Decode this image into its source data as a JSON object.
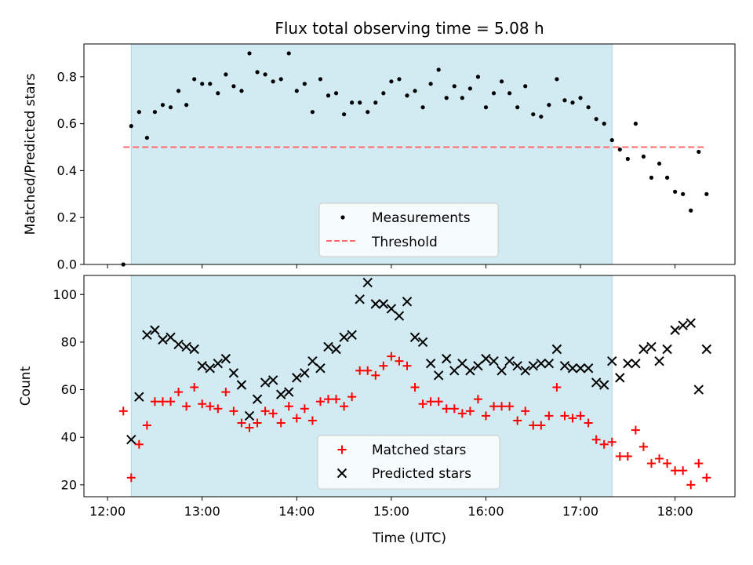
{
  "figure": {
    "title": "Flux total observing time = 5.08 h",
    "xlabel": "Time (UTC)"
  },
  "colors": {
    "shade": "#add8e6",
    "measurements": "#000000",
    "threshold": "#ff6b6b",
    "matched": "#ff0000",
    "predicted": "#000000"
  },
  "chart_data": [
    {
      "type": "scatter",
      "ylabel": "Matched/Predicted stars",
      "ylim": [
        0,
        0.94
      ],
      "yticks": [
        0.0,
        0.2,
        0.4,
        0.6,
        0.8
      ],
      "ytick_labels": [
        "0.0",
        "0.2",
        "0.4",
        "0.6",
        "0.8"
      ],
      "shaded_span": [
        "12:15",
        "17:20"
      ],
      "threshold": {
        "value": 0.5,
        "x_start": "12:10",
        "x_end": "18:20"
      },
      "legend": {
        "placement": "lower center",
        "entries": [
          "Measurements",
          "Threshold"
        ]
      },
      "series": [
        {
          "name": "Measurements",
          "marker": "dot",
          "x": [
            "12:10",
            "12:15",
            "12:20",
            "12:25",
            "12:30",
            "12:35",
            "12:40",
            "12:45",
            "12:50",
            "12:55",
            "13:00",
            "13:05",
            "13:10",
            "13:15",
            "13:20",
            "13:25",
            "13:30",
            "13:35",
            "13:40",
            "13:45",
            "13:50",
            "13:55",
            "14:00",
            "14:05",
            "14:10",
            "14:15",
            "14:20",
            "14:25",
            "14:30",
            "14:35",
            "14:40",
            "14:45",
            "14:50",
            "14:55",
            "15:00",
            "15:05",
            "15:10",
            "15:15",
            "15:20",
            "15:25",
            "15:30",
            "15:35",
            "15:40",
            "15:45",
            "15:50",
            "15:55",
            "16:00",
            "16:05",
            "16:10",
            "16:15",
            "16:20",
            "16:25",
            "16:30",
            "16:35",
            "16:40",
            "16:45",
            "16:50",
            "16:55",
            "17:00",
            "17:05",
            "17:10",
            "17:15",
            "17:20",
            "17:25",
            "17:30",
            "17:35",
            "17:40",
            "17:45",
            "17:50",
            "17:55",
            "18:00",
            "18:05",
            "18:10",
            "18:15",
            "18:20"
          ],
          "y": [
            0.0,
            0.59,
            0.65,
            0.54,
            0.65,
            0.68,
            0.67,
            0.74,
            0.68,
            0.79,
            0.77,
            0.77,
            0.73,
            0.81,
            0.76,
            0.74,
            0.9,
            0.82,
            0.81,
            0.78,
            0.79,
            0.9,
            0.74,
            0.77,
            0.65,
            0.79,
            0.72,
            0.73,
            0.64,
            0.69,
            0.69,
            0.65,
            0.69,
            0.73,
            0.78,
            0.79,
            0.72,
            0.74,
            0.67,
            0.77,
            0.83,
            0.71,
            0.76,
            0.71,
            0.75,
            0.8,
            0.67,
            0.73,
            0.78,
            0.73,
            0.67,
            0.76,
            0.64,
            0.63,
            0.68,
            0.79,
            0.7,
            0.69,
            0.71,
            0.67,
            0.62,
            0.6,
            0.53,
            0.49,
            0.45,
            0.6,
            0.46,
            0.37,
            0.43,
            0.37,
            0.31,
            0.3,
            0.23,
            0.48,
            0.3
          ]
        }
      ]
    },
    {
      "type": "scatter",
      "ylabel": "Count",
      "ylim": [
        15,
        108
      ],
      "yticks": [
        20,
        40,
        60,
        80,
        100
      ],
      "ytick_labels": [
        "20",
        "40",
        "60",
        "80",
        "100"
      ],
      "xticks": [
        "12:00",
        "13:00",
        "14:00",
        "15:00",
        "16:00",
        "17:00",
        "18:00"
      ],
      "xtick_labels": [
        "12:00",
        "13:00",
        "14:00",
        "15:00",
        "16:00",
        "17:00",
        "18:00"
      ],
      "shaded_span": [
        "12:15",
        "17:20"
      ],
      "legend": {
        "placement": "lower center",
        "entries": [
          "Matched stars",
          "Predicted stars"
        ]
      },
      "series": [
        {
          "name": "Matched stars",
          "marker": "plus",
          "x": [
            "12:10",
            "12:15",
            "12:20",
            "12:25",
            "12:30",
            "12:35",
            "12:40",
            "12:45",
            "12:50",
            "12:55",
            "13:00",
            "13:05",
            "13:10",
            "13:15",
            "13:20",
            "13:25",
            "13:30",
            "13:35",
            "13:40",
            "13:45",
            "13:50",
            "13:55",
            "14:00",
            "14:05",
            "14:10",
            "14:15",
            "14:20",
            "14:25",
            "14:30",
            "14:35",
            "14:40",
            "14:45",
            "14:50",
            "14:55",
            "15:00",
            "15:05",
            "15:10",
            "15:15",
            "15:20",
            "15:25",
            "15:30",
            "15:35",
            "15:40",
            "15:45",
            "15:50",
            "15:55",
            "16:00",
            "16:05",
            "16:10",
            "16:15",
            "16:20",
            "16:25",
            "16:30",
            "16:35",
            "16:40",
            "16:45",
            "16:50",
            "16:55",
            "17:00",
            "17:05",
            "17:10",
            "17:15",
            "17:20",
            "17:25",
            "17:30",
            "17:35",
            "17:40",
            "17:45",
            "17:50",
            "17:55",
            "18:00",
            "18:05",
            "18:10",
            "18:15",
            "18:20"
          ],
          "y": [
            51,
            23,
            37,
            45,
            55,
            55,
            55,
            59,
            53,
            61,
            54,
            53,
            52,
            59,
            51,
            46,
            44,
            46,
            51,
            50,
            46,
            53,
            48,
            52,
            47,
            55,
            56,
            56,
            53,
            57,
            68,
            68,
            66,
            70,
            74,
            72,
            70,
            61,
            54,
            55,
            55,
            52,
            52,
            50,
            51,
            56,
            49,
            53,
            53,
            53,
            47,
            51,
            45,
            45,
            49,
            61,
            49,
            48,
            49,
            46,
            39,
            37,
            38,
            32,
            32,
            43,
            36,
            29,
            31,
            29,
            26,
            26,
            20,
            29,
            23
          ]
        },
        {
          "name": "Predicted stars",
          "marker": "x",
          "x": [
            "12:15",
            "12:20",
            "12:25",
            "12:30",
            "12:35",
            "12:40",
            "12:45",
            "12:50",
            "12:55",
            "13:00",
            "13:05",
            "13:10",
            "13:15",
            "13:20",
            "13:25",
            "13:30",
            "13:35",
            "13:40",
            "13:45",
            "13:50",
            "13:55",
            "14:00",
            "14:05",
            "14:10",
            "14:15",
            "14:20",
            "14:25",
            "14:30",
            "14:35",
            "14:40",
            "14:45",
            "14:50",
            "14:55",
            "15:00",
            "15:05",
            "15:10",
            "15:15",
            "15:20",
            "15:25",
            "15:30",
            "15:35",
            "15:40",
            "15:45",
            "15:50",
            "15:55",
            "16:00",
            "16:05",
            "16:10",
            "16:15",
            "16:20",
            "16:25",
            "16:30",
            "16:35",
            "16:40",
            "16:45",
            "16:50",
            "16:55",
            "17:00",
            "17:05",
            "17:10",
            "17:15",
            "17:20",
            "17:25",
            "17:30",
            "17:35",
            "17:40",
            "17:45",
            "17:50",
            "17:55",
            "18:00",
            "18:05",
            "18:10",
            "18:15",
            "18:20"
          ],
          "y": [
            39,
            57,
            83,
            85,
            81,
            82,
            79,
            78,
            77,
            70,
            69,
            71,
            73,
            67,
            62,
            49,
            56,
            63,
            64,
            58,
            59,
            65,
            67,
            72,
            69,
            78,
            77,
            82,
            83,
            98,
            105,
            96,
            96,
            94,
            91,
            97,
            82,
            80,
            71,
            66,
            73,
            68,
            71,
            68,
            70,
            73,
            72,
            68,
            72,
            70,
            68,
            70,
            71,
            71,
            77,
            70,
            69,
            69,
            69,
            63,
            62,
            72,
            65,
            71,
            71,
            77,
            78,
            72,
            77,
            85,
            87,
            88,
            60,
            77
          ]
        }
      ]
    }
  ]
}
